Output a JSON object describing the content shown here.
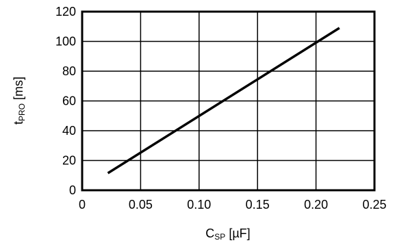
{
  "chart_data": {
    "type": "line",
    "title": "",
    "xlabel_main": "C",
    "xlabel_sub": "SP",
    "xlabel_unit": " [µF]",
    "ylabel_main": "t",
    "ylabel_sub": "PRO",
    "ylabel_unit": " [ms]",
    "xlim": [
      0,
      0.25
    ],
    "ylim": [
      0,
      120
    ],
    "x_ticks": [
      0,
      0.05,
      0.1,
      0.15,
      0.2,
      0.25
    ],
    "x_tick_labels": [
      "0",
      "0.05",
      "0.10",
      "0.15",
      "0.20",
      "0.25"
    ],
    "y_ticks": [
      0,
      20,
      40,
      60,
      80,
      100,
      120
    ],
    "y_tick_labels": [
      "0",
      "20",
      "40",
      "60",
      "80",
      "100",
      "120"
    ],
    "grid": true,
    "series": [
      {
        "x": [
          0.022,
          0.22
        ],
        "y": [
          11.5,
          109
        ],
        "color": "#000000"
      }
    ]
  }
}
